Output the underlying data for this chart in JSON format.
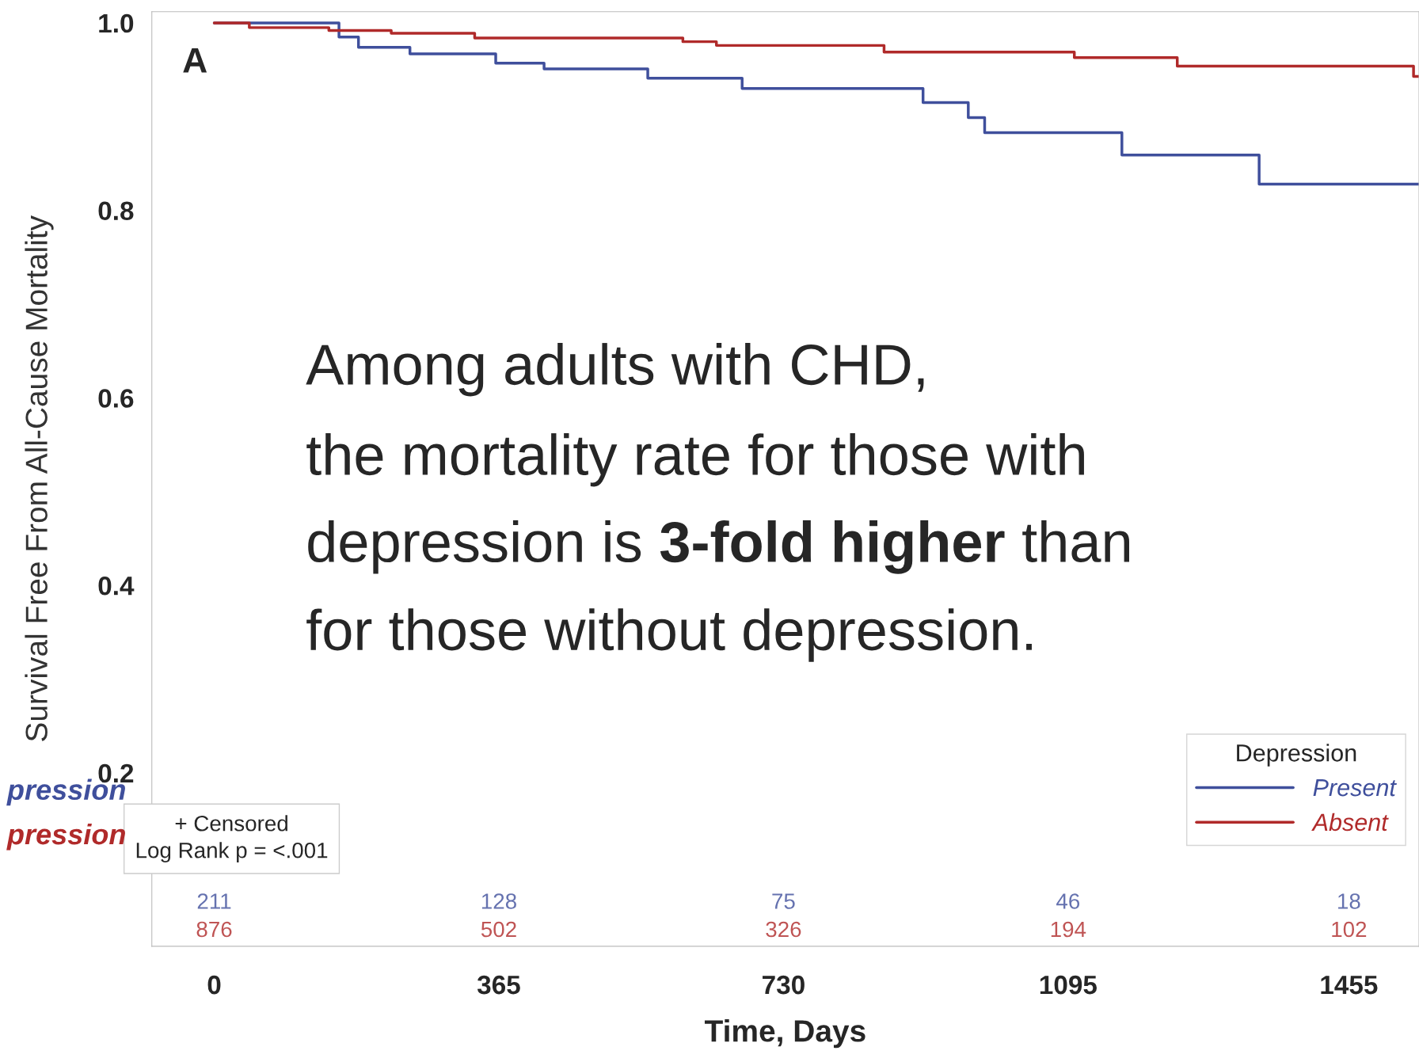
{
  "chart_data": {
    "type": "step",
    "xlabel": "Time, Days",
    "ylabel": "Survival Free From All-Cause Mortality",
    "legend_title": "Depression",
    "xlim": [
      -80,
      1545
    ],
    "ylim": [
      0.015,
      1.012
    ],
    "xticks": [
      0,
      365,
      730,
      1095,
      1455
    ],
    "yticks": [
      0.2,
      0.4,
      0.6,
      0.8,
      {
        "value": 1.0,
        "label": "1.0"
      }
    ],
    "grid": false,
    "legend": "bottom right",
    "series": [
      {
        "name": "Present",
        "color": "#3f4f9c",
        "x": [
          0,
          160,
          185,
          251,
          361,
          423,
          556,
          677,
          909,
          967,
          988,
          1164,
          1340,
          1545
        ],
        "values": [
          1.0,
          0.985,
          0.974,
          0.967,
          0.957,
          0.951,
          0.941,
          0.93,
          0.915,
          0.899,
          0.883,
          0.859,
          0.828,
          0.828
        ]
      },
      {
        "name": "Absent",
        "color": "#b02a2a",
        "x": [
          0,
          45,
          147,
          227,
          334,
          601,
          644,
          859,
          1103,
          1235,
          1538,
          1545
        ],
        "values": [
          1.0,
          0.995,
          0.992,
          0.989,
          0.984,
          0.98,
          0.976,
          0.969,
          0.963,
          0.954,
          0.943,
          0.943
        ]
      }
    ],
    "annotations": [
      "A",
      "+ Censored\nLog Rank p = <.001",
      "Among adults with CHD,",
      "the mortality rate for those with",
      "depression is ",
      "3-fold higher",
      " than",
      "for those without depression.",
      "pression",
      "pression",
      "211",
      "128",
      "75",
      "46",
      "18",
      "876",
      "502",
      "326",
      "194",
      "102"
    ]
  }
}
